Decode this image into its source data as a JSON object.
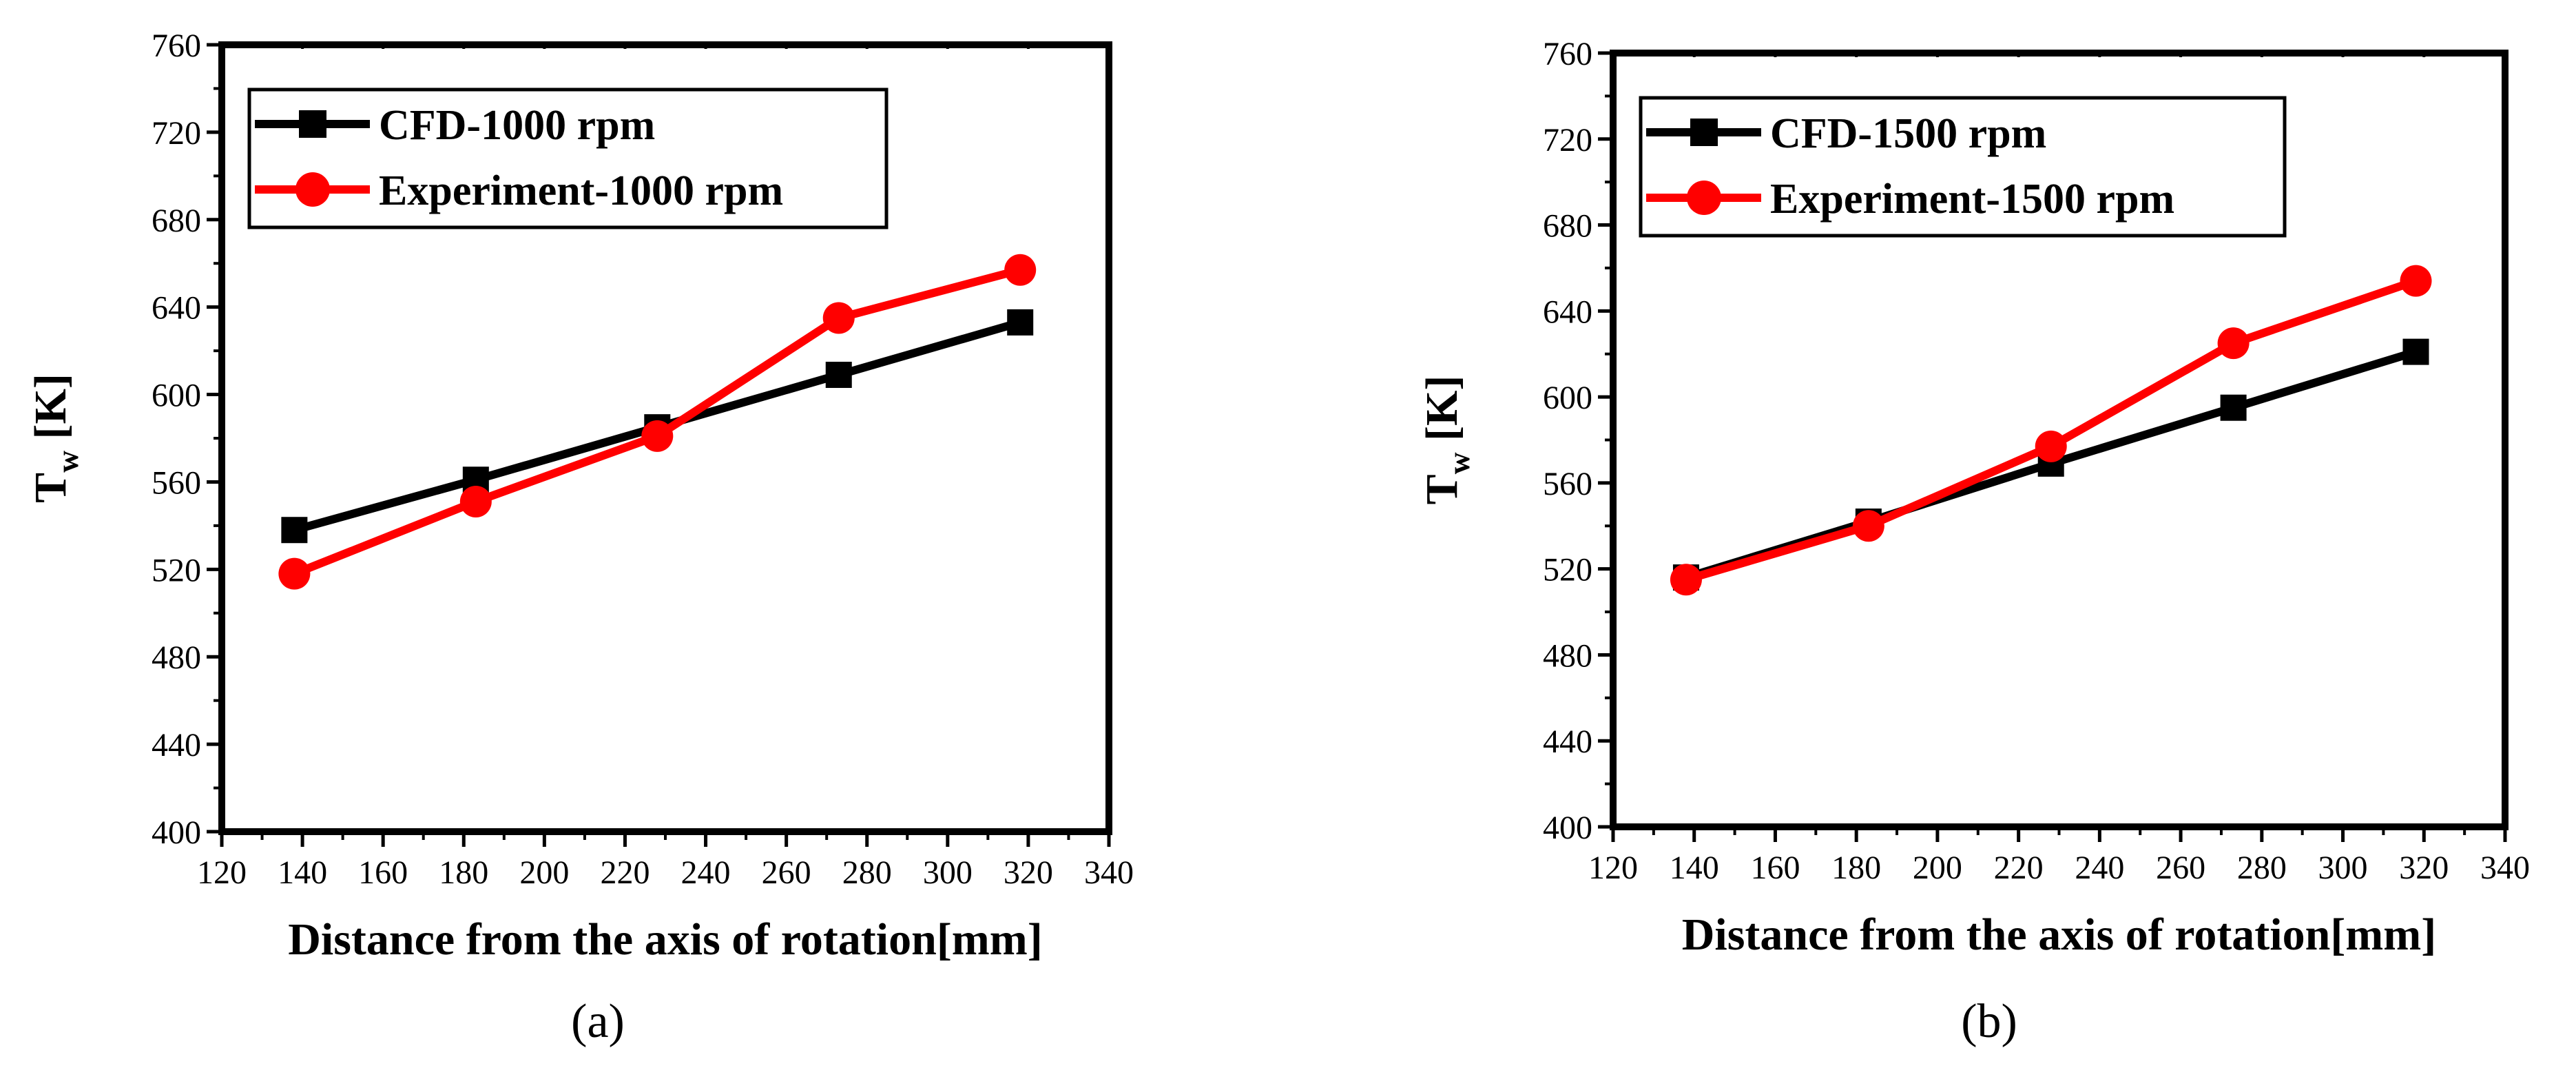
{
  "chart_data": [
    {
      "type": "line",
      "panel_label": "(a)",
      "xlabel": "Distance from the axis of rotation[mm]",
      "ylabel_main": "T",
      "ylabel_sub": "w",
      "ylabel_unit": "[K]",
      "xlim": [
        120,
        340
      ],
      "ylim": [
        400,
        760
      ],
      "xticks": [
        120,
        140,
        160,
        180,
        200,
        220,
        240,
        260,
        280,
        300,
        320,
        340
      ],
      "yticks": [
        400,
        440,
        480,
        520,
        560,
        600,
        640,
        680,
        720,
        760
      ],
      "x": [
        138,
        183,
        228,
        273,
        318
      ],
      "series": [
        {
          "name": "CFD-1000 rpm",
          "color": "#000000",
          "marker": "square",
          "values": [
            538,
            561,
            585,
            609,
            633
          ]
        },
        {
          "name": "Experiment-1000 rpm",
          "color": "#ff0000",
          "marker": "circle",
          "values": [
            518,
            551,
            581,
            635,
            657
          ]
        }
      ],
      "legend": "top-left"
    },
    {
      "type": "line",
      "panel_label": "(b)",
      "xlabel": "Distance from the axis of rotation[mm]",
      "ylabel_main": "T",
      "ylabel_sub": "w",
      "ylabel_unit": "[K]",
      "xlim": [
        120,
        340
      ],
      "ylim": [
        400,
        760
      ],
      "xticks": [
        120,
        140,
        160,
        180,
        200,
        220,
        240,
        260,
        280,
        300,
        320,
        340
      ],
      "yticks": [
        400,
        440,
        480,
        520,
        560,
        600,
        640,
        680,
        720,
        760
      ],
      "x": [
        138,
        183,
        228,
        273,
        318
      ],
      "series": [
        {
          "name": "CFD-1500 rpm",
          "color": "#000000",
          "marker": "square",
          "values": [
            516,
            542,
            569,
            595,
            621
          ]
        },
        {
          "name": "Experiment-1500 rpm",
          "color": "#ff0000",
          "marker": "circle",
          "values": [
            515,
            540,
            577,
            625,
            654
          ]
        }
      ],
      "legend": "top-left"
    }
  ]
}
